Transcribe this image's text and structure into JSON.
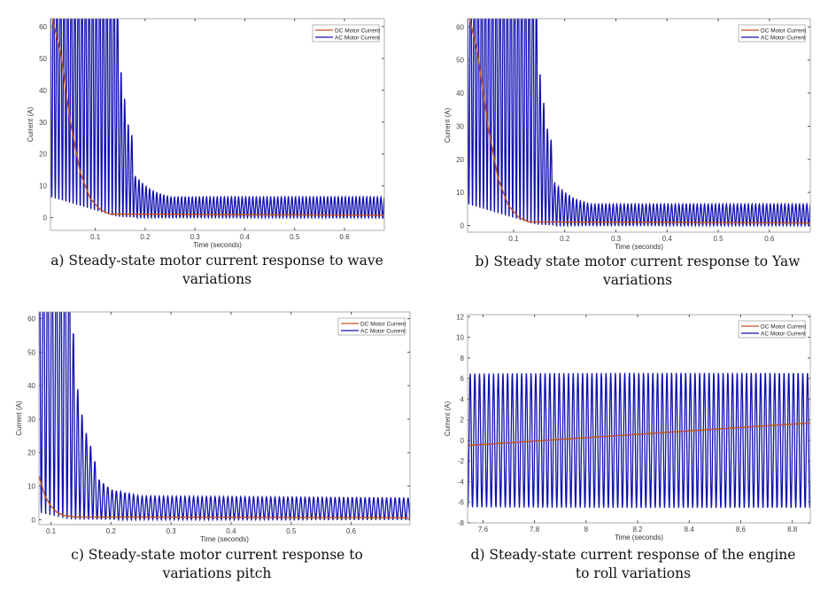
{
  "colors": {
    "dc": "#c0501e",
    "ac": "#1010b0",
    "axis": "#555555"
  },
  "chart_data": [
    {
      "type": "line",
      "caption": "a) Steady-state motor current response to wave variations",
      "xlabel": "Time (seconds)",
      "ylabel": "Current (A)",
      "xlim": [
        0.01,
        0.68
      ],
      "ylim": [
        -4,
        62.5
      ],
      "xticks": [
        0.1,
        0.2,
        0.3,
        0.4,
        0.5,
        0.6
      ],
      "yticks": [
        0,
        10,
        20,
        30,
        40,
        50,
        60
      ],
      "grid": false,
      "legend": "top-right",
      "series": [
        {
          "name": "DC Motor Current",
          "points": [
            [
              0.01,
              65
            ],
            [
              0.03,
              52
            ],
            [
              0.05,
              30
            ],
            [
              0.07,
              14
            ],
            [
              0.09,
              6
            ],
            [
              0.11,
              2.5
            ],
            [
              0.13,
              1.1
            ],
            [
              0.68,
              0.8
            ]
          ]
        },
        {
          "name": "AC Motor Current",
          "frequency_hz": 140,
          "upper_envelope": [
            [
              0.01,
              90
            ],
            [
              0.14,
              90
            ],
            [
              0.15,
              48
            ],
            [
              0.165,
              30
            ],
            [
              0.175,
              25
            ],
            [
              0.18,
              13
            ],
            [
              0.2,
              10
            ],
            [
              0.22,
              8
            ],
            [
              0.25,
              6.5
            ],
            [
              0.68,
              6.5
            ]
          ],
          "lower_envelope": [
            [
              0.01,
              6
            ],
            [
              0.14,
              0
            ],
            [
              0.68,
              0
            ]
          ]
        }
      ]
    },
    {
      "type": "line",
      "caption": "b) Steady state motor current response to Yaw variations",
      "xlabel": "Time (seconds)",
      "ylabel": "Current (A)",
      "xlim": [
        0.01,
        0.68
      ],
      "ylim": [
        -2,
        62.5
      ],
      "xticks": [
        0.1,
        0.2,
        0.3,
        0.4,
        0.5,
        0.6
      ],
      "yticks": [
        0,
        10,
        20,
        30,
        40,
        50,
        60
      ],
      "grid": false,
      "legend": "top-right",
      "series": [
        {
          "name": "DC Motor Current",
          "points": [
            [
              0.01,
              65
            ],
            [
              0.03,
              52
            ],
            [
              0.05,
              30
            ],
            [
              0.07,
              14
            ],
            [
              0.09,
              6
            ],
            [
              0.11,
              2.5
            ],
            [
              0.13,
              1.1
            ],
            [
              0.68,
              0.8
            ]
          ]
        },
        {
          "name": "AC Motor Current",
          "frequency_hz": 140,
          "upper_envelope": [
            [
              0.01,
              90
            ],
            [
              0.14,
              90
            ],
            [
              0.15,
              48
            ],
            [
              0.165,
              30
            ],
            [
              0.175,
              25
            ],
            [
              0.18,
              13
            ],
            [
              0.2,
              10
            ],
            [
              0.22,
              8
            ],
            [
              0.25,
              6.5
            ],
            [
              0.68,
              6.5
            ]
          ],
          "lower_envelope": [
            [
              0.01,
              6
            ],
            [
              0.14,
              0
            ],
            [
              0.68,
              0
            ]
          ]
        }
      ]
    },
    {
      "type": "line",
      "caption": "c) Steady-state motor current response to variations pitch",
      "xlabel": "Time (seconds)",
      "ylabel": "Current (A)",
      "xlim": [
        0.08,
        0.698
      ],
      "ylim": [
        -1.5,
        62
      ],
      "xticks": [
        0.1,
        0.2,
        0.3,
        0.4,
        0.5,
        0.6
      ],
      "yticks": [
        0,
        10,
        20,
        30,
        40,
        50,
        60
      ],
      "grid": false,
      "legend": "top-right",
      "series": [
        {
          "name": "DC Motor Current",
          "points": [
            [
              0.08,
              13
            ],
            [
              0.09,
              7
            ],
            [
              0.1,
              4
            ],
            [
              0.11,
              2.2
            ],
            [
              0.12,
              1.3
            ],
            [
              0.14,
              0.8
            ],
            [
              0.698,
              0.6
            ]
          ]
        },
        {
          "name": "AC Motor Current",
          "frequency_hz": 140,
          "upper_envelope": [
            [
              0.08,
              90
            ],
            [
              0.13,
              90
            ],
            [
              0.14,
              44
            ],
            [
              0.155,
              28
            ],
            [
              0.17,
              20
            ],
            [
              0.18,
              12
            ],
            [
              0.2,
              9
            ],
            [
              0.25,
              7
            ],
            [
              0.698,
              6.5
            ]
          ],
          "lower_envelope": [
            [
              0.08,
              2
            ],
            [
              0.13,
              0
            ],
            [
              0.698,
              0
            ]
          ]
        }
      ]
    },
    {
      "type": "line",
      "caption": "d) Steady-state current response of the engine to roll variations",
      "xlabel": "Time (seconds)",
      "ylabel": "Current (A)",
      "xlim": [
        7.54,
        8.87
      ],
      "ylim": [
        -8,
        12.2
      ],
      "xticks": [
        7.6,
        7.8,
        8,
        8.2,
        8.4,
        8.6,
        8.8
      ],
      "yticks": [
        -8,
        -6,
        -4,
        -2,
        0,
        2,
        4,
        6,
        8,
        10,
        12
      ],
      "grid": false,
      "legend": "top-right",
      "series": [
        {
          "name": "DC Motor Current",
          "points": [
            [
              7.54,
              -0.5
            ],
            [
              8.87,
              1.7
            ]
          ]
        },
        {
          "name": "AC Motor Current",
          "frequency_hz": 55,
          "upper_envelope": [
            [
              7.54,
              6.5
            ],
            [
              8.87,
              6.6
            ]
          ],
          "lower_envelope": [
            [
              7.54,
              -6.5
            ],
            [
              8.87,
              -6.6
            ]
          ]
        }
      ]
    }
  ],
  "captions": [
    [
      "a) Steady-state motor current response to wave",
      "variations"
    ],
    [
      "b) Steady state motor current response to Yaw",
      "variations"
    ],
    [
      "c) Steady-state motor current response to",
      "variations pitch"
    ],
    [
      "d) Steady-state current response of the engine",
      "to roll variations"
    ]
  ]
}
